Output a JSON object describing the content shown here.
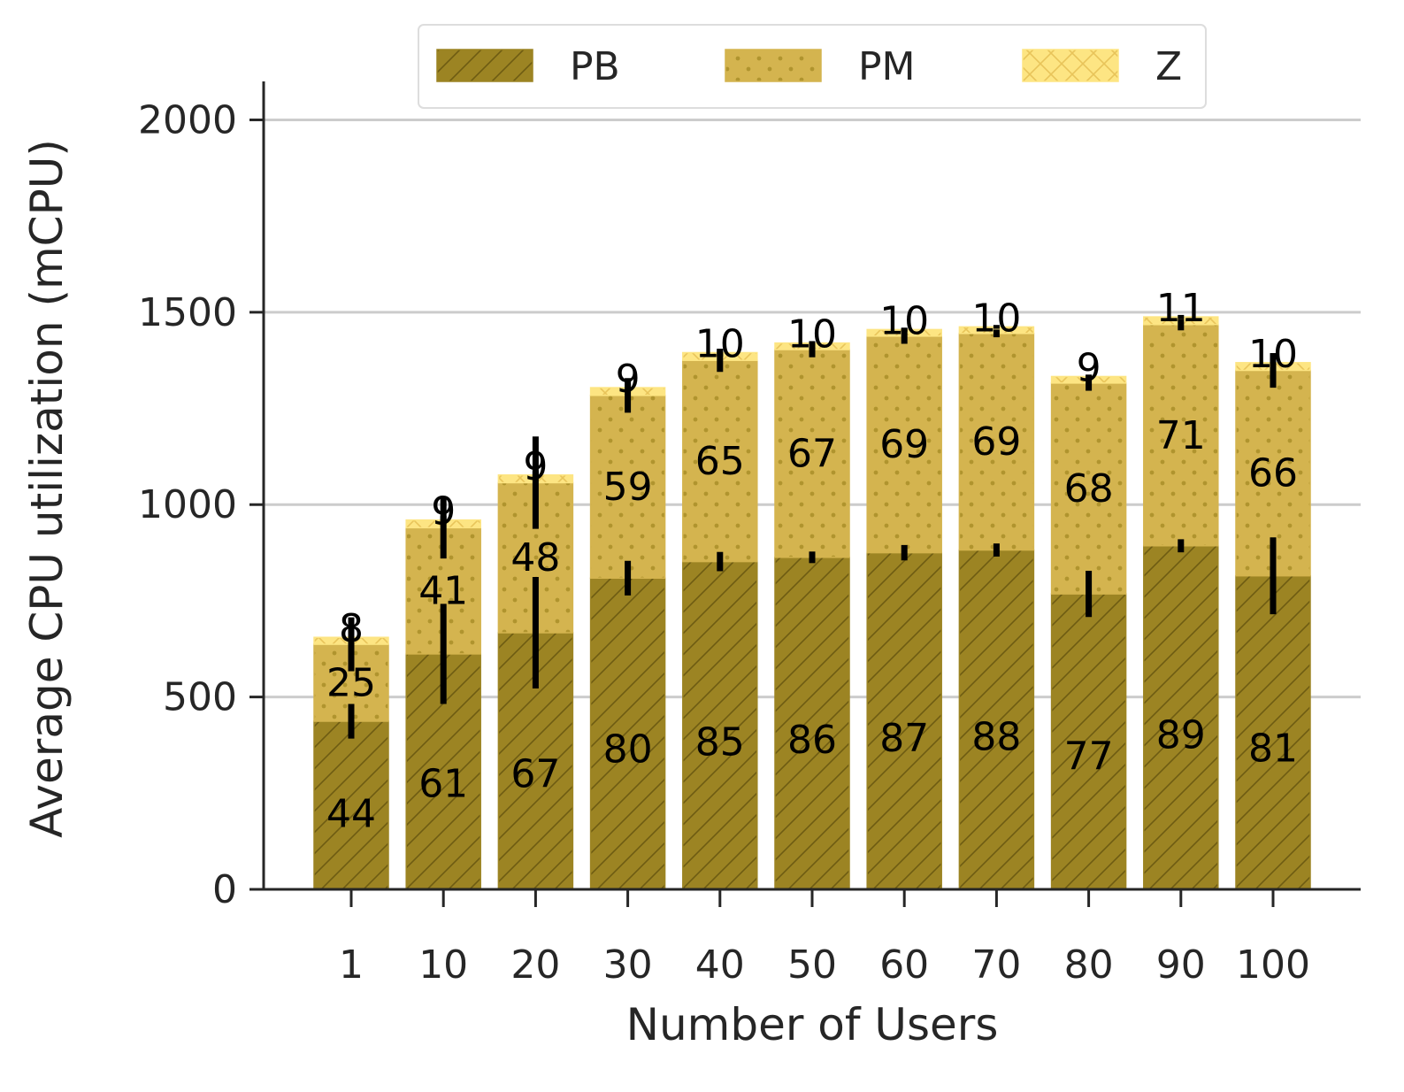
{
  "chart_data": {
    "type": "bar",
    "stacked": true,
    "xlabel": "Number of Users",
    "ylabel": "Average CPU utilization (mCPU)",
    "ylim": [
      0,
      2100
    ],
    "yticks": [
      0,
      500,
      1000,
      1500,
      2000
    ],
    "grid": "horizontal",
    "legend": "top-center",
    "categories": [
      "1",
      "10",
      "20",
      "30",
      "40",
      "50",
      "60",
      "70",
      "80",
      "90",
      "100"
    ],
    "series": [
      {
        "name": "PB",
        "color": "#9c8423",
        "pattern": "diagonal-hatch",
        "values": [
          437,
          612,
          667,
          809,
          852,
          863,
          875,
          882,
          768,
          893,
          815
        ],
        "errors": [
          45,
          130,
          145,
          45,
          25,
          15,
          20,
          17,
          60,
          17,
          100
        ],
        "labels": [
          "44",
          "61",
          "67",
          "80",
          "85",
          "86",
          "87",
          "88",
          "77",
          "89",
          "81"
        ]
      },
      {
        "name": "PM",
        "color": "#d4b44f",
        "pattern": "dots",
        "values": [
          200,
          328,
          390,
          475,
          523,
          540,
          563,
          563,
          548,
          575,
          534
        ],
        "errors": [
          70,
          80,
          120,
          45,
          30,
          20,
          20,
          10,
          20,
          15,
          45
        ],
        "labels": [
          "25",
          "41",
          "48",
          "59",
          "65",
          "67",
          "69",
          "69",
          "68",
          "71",
          "66"
        ]
      },
      {
        "name": "Z",
        "color": "#fde583",
        "pattern": "crosshatch",
        "values": [
          18,
          20,
          20,
          20,
          20,
          17,
          17,
          17,
          17,
          20,
          20
        ],
        "errors": [
          10,
          10,
          10,
          10,
          10,
          5,
          5,
          5,
          5,
          5,
          5
        ],
        "labels": [
          "8",
          "9",
          "9",
          "9",
          "10",
          "10",
          "10",
          "10",
          "9",
          "11",
          "10"
        ]
      }
    ]
  }
}
